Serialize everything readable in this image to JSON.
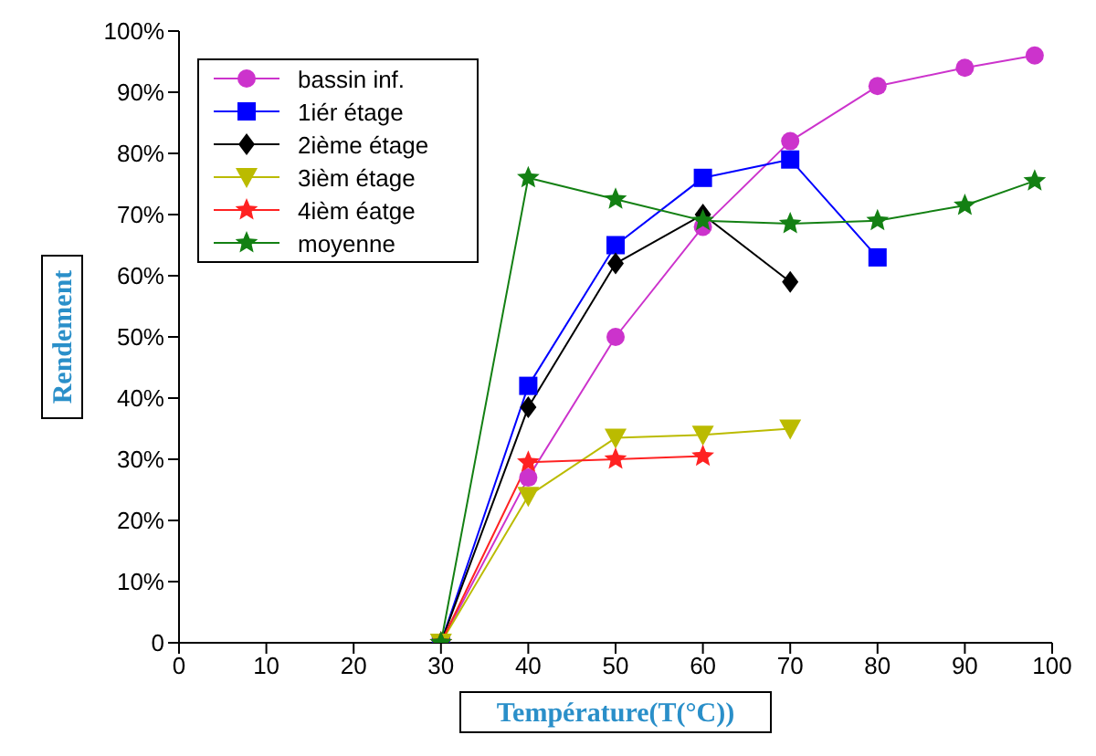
{
  "chart_data": {
    "type": "line",
    "xlabel": "Température(T(°C))",
    "ylabel": "Rendement",
    "xlim": [
      0,
      100
    ],
    "xticks": [
      0,
      10,
      20,
      30,
      40,
      50,
      60,
      70,
      80,
      90,
      100
    ],
    "ylim": [
      0,
      100
    ],
    "yticks": [
      {
        "value": 0,
        "label": "0"
      },
      {
        "value": 10,
        "label": "10%"
      },
      {
        "value": 20,
        "label": "20%"
      },
      {
        "value": 30,
        "label": "30%"
      },
      {
        "value": 40,
        "label": "40%"
      },
      {
        "value": 50,
        "label": "50%"
      },
      {
        "value": 60,
        "label": "60%"
      },
      {
        "value": 70,
        "label": "70%"
      },
      {
        "value": 80,
        "label": "80%"
      },
      {
        "value": 90,
        "label": "90%"
      },
      {
        "value": 100,
        "label": "100%"
      }
    ],
    "grid": false,
    "legend": "top left",
    "series": [
      {
        "name": "bassin inf.",
        "color": "#cc33cc",
        "marker": "circle",
        "x": [
          30,
          40,
          50,
          60,
          70,
          80,
          90,
          98
        ],
        "values": [
          0,
          27,
          50,
          68,
          82,
          91,
          94,
          96
        ]
      },
      {
        "name": "1iér étage",
        "color": "#0000ff",
        "marker": "square",
        "x": [
          30,
          40,
          50,
          60,
          70,
          80
        ],
        "values": [
          0,
          42,
          65,
          76,
          79,
          63
        ]
      },
      {
        "name": "2ième étage",
        "color": "#000000",
        "marker": "diamond",
        "x": [
          30,
          40,
          50,
          60,
          70
        ],
        "values": [
          0,
          38.5,
          62,
          70,
          59
        ]
      },
      {
        "name": "3ièm étage",
        "color": "#bbbb00",
        "marker": "triangle",
        "x": [
          30,
          40,
          50,
          60,
          70
        ],
        "values": [
          0,
          24,
          33.5,
          34,
          35
        ]
      },
      {
        "name": "4ièm éatge",
        "color": "#ff2222",
        "marker": "star",
        "x": [
          30,
          40,
          50,
          60
        ],
        "values": [
          0,
          29.5,
          30,
          30.5
        ]
      },
      {
        "name": "moyenne",
        "color": "#138013",
        "marker": "star",
        "x": [
          30,
          40,
          50,
          60,
          70,
          80,
          90,
          98
        ],
        "values": [
          0,
          76,
          72.5,
          69,
          68.5,
          69,
          71.5,
          75.5
        ]
      }
    ]
  }
}
